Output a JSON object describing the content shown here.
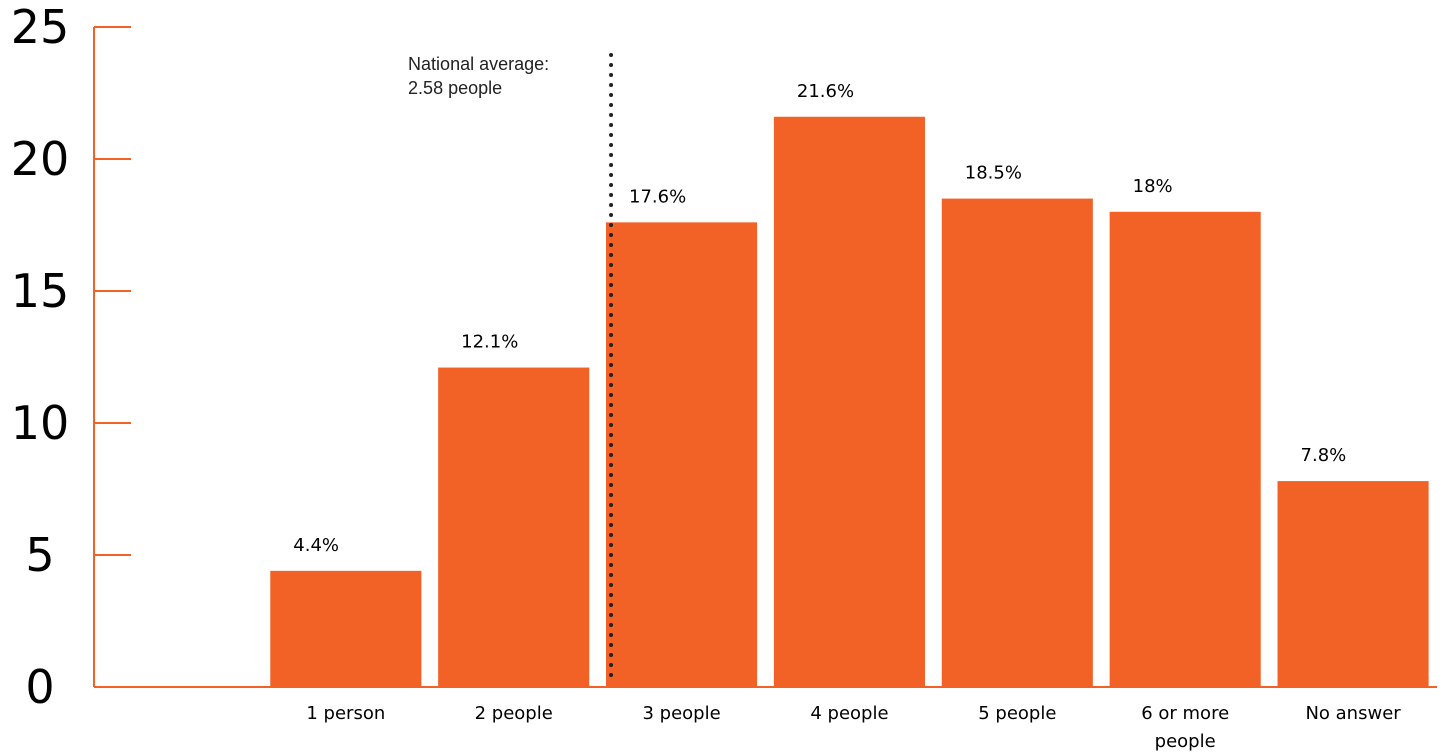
{
  "chart_data": {
    "type": "bar",
    "categories": [
      "",
      "1 person",
      "2 people",
      "3 people",
      "4 people",
      "5 people",
      "6 or more people",
      "No answer"
    ],
    "category_label_lines": [
      [
        ""
      ],
      [
        "1 person"
      ],
      [
        "2 people"
      ],
      [
        "3 people"
      ],
      [
        "4 people"
      ],
      [
        "5 people"
      ],
      [
        "6 or more",
        "people"
      ],
      [
        "No answer"
      ]
    ],
    "values": [
      null,
      4.4,
      12.1,
      17.6,
      21.6,
      18.5,
      18,
      7.8
    ],
    "data_labels": [
      "",
      "4.4%",
      "12.1%",
      "17.6%",
      "21.6%",
      "18.5%",
      "18%",
      "7.8%"
    ],
    "ylim": [
      0,
      25
    ],
    "yticks": [
      0,
      5,
      10,
      15,
      20,
      25
    ],
    "ytick_labels": [
      "0",
      "5",
      "10",
      "15",
      "20",
      "25"
    ],
    "title": "",
    "xlabel": "",
    "ylabel": "",
    "grid": false,
    "reference_line": {
      "x": 2.58,
      "style": "dotted",
      "label_lines": [
        "National average:",
        "2.58 people"
      ]
    },
    "colors": {
      "bar": "#f26125",
      "axis": "#f26125",
      "reference_line": "#222222"
    }
  }
}
